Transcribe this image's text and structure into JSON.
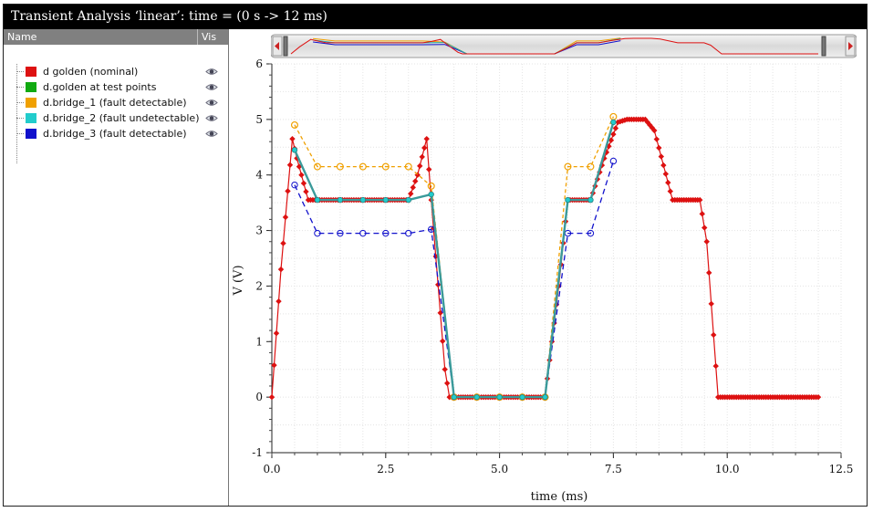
{
  "window": {
    "title": "Transient Analysis ‘linear’: time = (0 s -> 12 ms)"
  },
  "legend": {
    "header_name": "Name",
    "header_vis": "Vis",
    "items": [
      {
        "label": "d golden (nominal)",
        "color": "#dd1111",
        "icon": "eye-icon"
      },
      {
        "label": "d.golden at test points",
        "color": "#11aa11",
        "icon": "eye-icon"
      },
      {
        "label": "d.bridge_1 (fault detectable)",
        "color": "#f0a000",
        "icon": "eye-icon"
      },
      {
        "label": "d.bridge_2 (fault undetectable)",
        "color": "#22cccc",
        "icon": "eye-icon"
      },
      {
        "label": "d.bridge_3 (fault detectable)",
        "color": "#1111cc",
        "icon": "eye-icon"
      }
    ]
  },
  "chart_data": {
    "type": "line",
    "xlabel": "time (ms)",
    "ylabel": "V (V)",
    "xlim": [
      0,
      12.5
    ],
    "ylim": [
      -1,
      6
    ],
    "xticks": [
      "0.0",
      "2.5",
      "5.0",
      "7.5",
      "10.0",
      "12.5"
    ],
    "yticks": [
      "-1",
      "0",
      "1",
      "2",
      "3",
      "4",
      "5",
      "6"
    ],
    "grid": true,
    "series": [
      {
        "name": "d golden (nominal)",
        "color": "#dd1111",
        "style": "dense-markers",
        "x": [
          0,
          0.2,
          0.45,
          0.55,
          0.8,
          1.0,
          3.0,
          3.2,
          3.4,
          3.5,
          3.8,
          3.9,
          6.0,
          6.3,
          6.5,
          7.0,
          7.3,
          7.6,
          7.8,
          8.2,
          8.4,
          8.8,
          9.4,
          9.55,
          9.8,
          12.0
        ],
        "y": [
          0,
          2.3,
          4.65,
          4.3,
          3.55,
          3.55,
          3.55,
          4.0,
          4.65,
          3.55,
          0.5,
          0,
          0,
          2.0,
          3.55,
          3.55,
          4.3,
          4.95,
          5.0,
          5.0,
          4.8,
          3.55,
          3.55,
          2.8,
          0,
          0
        ]
      },
      {
        "name": "d.golden at test points",
        "color": "#11aa11",
        "style": "markers",
        "x": [
          0.5,
          1.0,
          1.5,
          2.0,
          2.5,
          3.0,
          3.5,
          4.0,
          4.5,
          5.0,
          5.5,
          6.0,
          6.5,
          7.0,
          7.5
        ],
        "y": [
          4.45,
          3.55,
          3.55,
          3.55,
          3.55,
          3.55,
          3.65,
          0,
          0,
          0,
          0,
          0,
          3.55,
          3.55,
          4.95
        ]
      },
      {
        "name": "d.bridge_1 (fault detectable)",
        "color": "#f0a000",
        "style": "dashed-markers",
        "x": [
          0.5,
          1.0,
          1.5,
          2.0,
          2.5,
          3.0,
          3.5,
          4.0,
          4.5,
          5.0,
          5.5,
          6.0,
          6.5,
          7.0,
          7.5
        ],
        "y": [
          4.9,
          4.15,
          4.15,
          4.15,
          4.15,
          4.15,
          3.8,
          0,
          0,
          0,
          0,
          0,
          4.15,
          4.15,
          5.05
        ]
      },
      {
        "name": "d.bridge_2 (fault undetectable)",
        "color": "#22cccc",
        "style": "line-markers",
        "x": [
          0.5,
          1.0,
          1.5,
          2.0,
          2.5,
          3.0,
          3.5,
          4.0,
          4.5,
          5.0,
          5.5,
          6.0,
          6.5,
          7.0,
          7.5
        ],
        "y": [
          4.45,
          3.55,
          3.55,
          3.55,
          3.55,
          3.55,
          3.65,
          0,
          0,
          0,
          0,
          0,
          3.55,
          3.55,
          4.95
        ]
      },
      {
        "name": "d.bridge_3 (fault detectable)",
        "color": "#1111cc",
        "style": "dashed-markers",
        "x": [
          0.5,
          1.0,
          1.5,
          2.0,
          2.5,
          3.0,
          3.5,
          4.0,
          4.5,
          5.0,
          5.5,
          6.0,
          6.5,
          7.0,
          7.5
        ],
        "y": [
          3.82,
          2.95,
          2.95,
          2.95,
          2.95,
          2.95,
          3.02,
          0,
          0,
          0,
          0,
          0,
          2.95,
          2.95,
          4.25
        ]
      }
    ]
  }
}
